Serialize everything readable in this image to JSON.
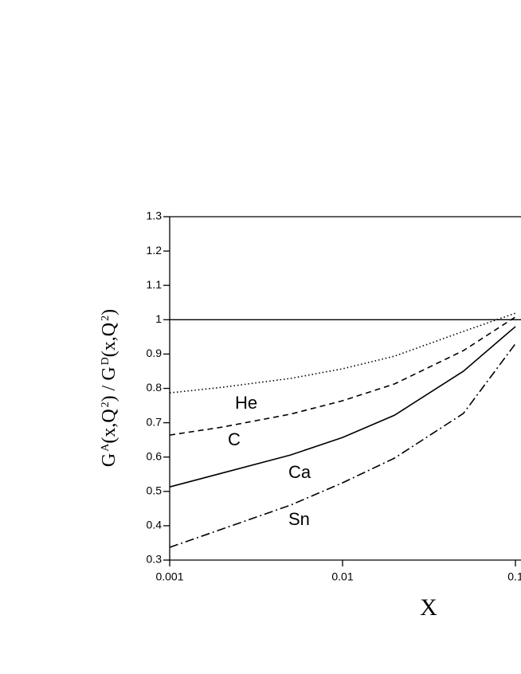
{
  "chart_data": {
    "type": "line",
    "ylabel_parts": [
      "G",
      "A",
      "(x,Q",
      "2",
      ") / G",
      "D",
      "(x,Q",
      "2",
      ")"
    ],
    "xlabel": "X",
    "x": [
      0.001,
      0.002,
      0.005,
      0.01,
      0.02,
      0.05,
      0.1
    ],
    "series": [
      {
        "name": "He",
        "color": "#000000",
        "style": "dotted",
        "values": [
          0.787,
          0.803,
          0.829,
          0.857,
          0.894,
          0.966,
          1.019
        ]
      },
      {
        "name": "C",
        "color": "#000000",
        "style": "dashed",
        "values": [
          0.664,
          0.687,
          0.725,
          0.764,
          0.813,
          0.91,
          1.008
        ]
      },
      {
        "name": "Ca",
        "color": "#000000",
        "style": "solid",
        "values": [
          0.513,
          0.553,
          0.606,
          0.657,
          0.722,
          0.85,
          0.98
        ]
      },
      {
        "name": "Sn",
        "color": "#000000",
        "style": "dashdot",
        "values": [
          0.337,
          0.39,
          0.46,
          0.525,
          0.597,
          0.727,
          0.93
        ]
      }
    ],
    "xscale": "log",
    "xlim": [
      0.001,
      1
    ],
    "xticks": [
      0.001,
      0.01,
      0.1
    ],
    "ylim": [
      0.3,
      1.3
    ],
    "yticks": [
      0.3,
      0.4,
      0.5,
      0.6,
      0.7,
      0.8,
      0.9,
      1,
      1.1,
      1.2,
      1.3
    ],
    "hline": 1,
    "grid": false
  }
}
